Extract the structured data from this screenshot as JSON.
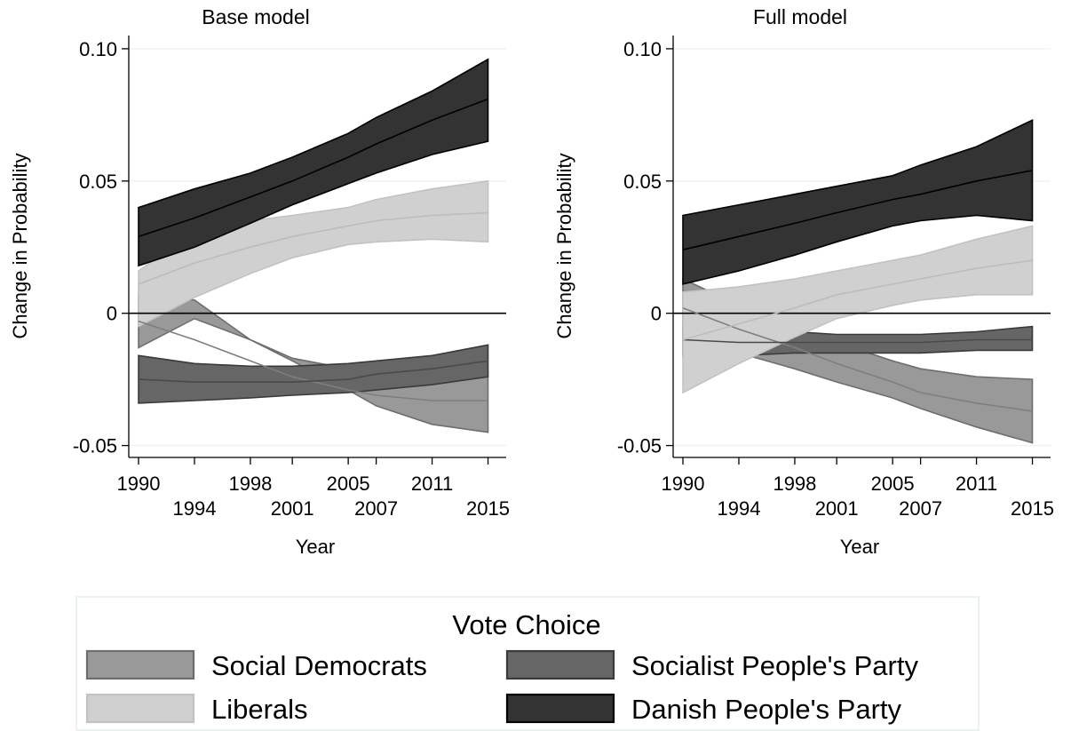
{
  "chart_data": [
    {
      "type": "area",
      "title": "Base model",
      "xlabel": "Year",
      "ylabel": "Change in Probability",
      "xlim": [
        1989.3,
        2016.3
      ],
      "ylim": [
        -0.0545,
        0.105
      ],
      "x_ticks": [
        1990,
        1994,
        1998,
        2001,
        2005,
        2007,
        2011,
        2015
      ],
      "y_ticks": [
        -0.05,
        0,
        0.05,
        0.1
      ],
      "y_tick_labels": [
        "-0.05",
        "0",
        "0.05",
        "0.10"
      ],
      "reference_line": 0,
      "grid": "horizontal",
      "series": [
        {
          "name": "Social Democrats",
          "x": [
            1990,
            1994,
            1998,
            2001,
            2005,
            2007,
            2011,
            2015
          ],
          "y": [
            -0.003,
            -0.01,
            -0.018,
            -0.024,
            -0.029,
            -0.031,
            -0.033,
            -0.033
          ],
          "lower": [
            -0.013,
            -0.002,
            -0.01,
            -0.018,
            -0.029,
            -0.035,
            -0.042,
            -0.045
          ],
          "upper": [
            0.007,
            0.005,
            -0.01,
            -0.017,
            -0.021,
            -0.027,
            -0.024,
            -0.022
          ]
        },
        {
          "name": "Socialist People's Party",
          "x": [
            1990,
            1994,
            1998,
            2001,
            2005,
            2007,
            2011,
            2015
          ],
          "y": [
            -0.025,
            -0.026,
            -0.026,
            -0.026,
            -0.025,
            -0.023,
            -0.021,
            -0.018
          ],
          "lower": [
            -0.034,
            -0.033,
            -0.032,
            -0.031,
            -0.03,
            -0.029,
            -0.027,
            -0.024
          ],
          "upper": [
            -0.016,
            -0.019,
            -0.02,
            -0.02,
            -0.019,
            -0.018,
            -0.016,
            -0.012
          ]
        },
        {
          "name": "Liberals",
          "x": [
            1990,
            1994,
            1998,
            2001,
            2005,
            2007,
            2011,
            2015
          ],
          "y": [
            0.011,
            0.019,
            0.025,
            0.029,
            0.033,
            0.035,
            0.037,
            0.038
          ],
          "lower": [
            -0.005,
            0.006,
            0.015,
            0.021,
            0.026,
            0.027,
            0.028,
            0.027
          ],
          "upper": [
            0.016,
            0.031,
            0.035,
            0.037,
            0.04,
            0.043,
            0.047,
            0.05
          ]
        },
        {
          "name": "Danish People's Party",
          "x": [
            1990,
            1994,
            1998,
            2001,
            2005,
            2007,
            2011,
            2015
          ],
          "y": [
            0.029,
            0.036,
            0.044,
            0.05,
            0.059,
            0.064,
            0.073,
            0.081
          ],
          "lower": [
            0.018,
            0.025,
            0.034,
            0.041,
            0.049,
            0.053,
            0.06,
            0.065
          ],
          "upper": [
            0.04,
            0.047,
            0.053,
            0.059,
            0.068,
            0.074,
            0.084,
            0.096
          ]
        }
      ]
    },
    {
      "type": "area",
      "title": "Full model",
      "xlabel": "Year",
      "ylabel": "Change in Probability",
      "xlim": [
        1989.3,
        2016.3
      ],
      "ylim": [
        -0.0545,
        0.105
      ],
      "x_ticks": [
        1990,
        1994,
        1998,
        2001,
        2005,
        2007,
        2011,
        2015
      ],
      "y_ticks": [
        -0.05,
        0,
        0.05,
        0.1
      ],
      "y_tick_labels": [
        "-0.05",
        "0",
        "0.05",
        "0.10"
      ],
      "reference_line": 0,
      "grid": "horizontal",
      "series": [
        {
          "name": "Social Democrats",
          "x": [
            1990,
            1994,
            1998,
            2001,
            2005,
            2007,
            2011,
            2015
          ],
          "y": [
            0.002,
            -0.006,
            -0.013,
            -0.019,
            -0.026,
            -0.03,
            -0.034,
            -0.037
          ],
          "lower": [
            -0.008,
            -0.015,
            -0.021,
            -0.026,
            -0.032,
            -0.036,
            -0.043,
            -0.049
          ],
          "upper": [
            0.013,
            0.003,
            -0.006,
            -0.011,
            -0.018,
            -0.021,
            -0.024,
            -0.025
          ]
        },
        {
          "name": "Socialist People's Party",
          "x": [
            1990,
            1994,
            1998,
            2001,
            2005,
            2007,
            2011,
            2015
          ],
          "y": [
            -0.01,
            -0.011,
            -0.011,
            -0.011,
            -0.011,
            -0.011,
            -0.01,
            -0.01
          ],
          "lower": [
            -0.016,
            -0.016,
            -0.015,
            -0.015,
            -0.015,
            -0.015,
            -0.014,
            -0.014
          ],
          "upper": [
            -0.005,
            -0.006,
            -0.007,
            -0.008,
            -0.008,
            -0.008,
            -0.007,
            -0.005
          ]
        },
        {
          "name": "Liberals",
          "x": [
            1990,
            1994,
            1998,
            2001,
            2005,
            2007,
            2011,
            2015
          ],
          "y": [
            -0.01,
            -0.004,
            0.002,
            0.007,
            0.011,
            0.013,
            0.017,
            0.02
          ],
          "lower": [
            -0.03,
            -0.019,
            -0.009,
            -0.002,
            0.003,
            0.005,
            0.007,
            0.007
          ],
          "upper": [
            0.008,
            0.01,
            0.013,
            0.016,
            0.02,
            0.022,
            0.028,
            0.033
          ]
        },
        {
          "name": "Danish People's Party",
          "x": [
            1990,
            1994,
            1998,
            2001,
            2005,
            2007,
            2011,
            2015
          ],
          "y": [
            0.024,
            0.029,
            0.034,
            0.038,
            0.043,
            0.045,
            0.05,
            0.054
          ],
          "lower": [
            0.011,
            0.016,
            0.022,
            0.027,
            0.033,
            0.035,
            0.037,
            0.035
          ],
          "upper": [
            0.037,
            0.041,
            0.045,
            0.048,
            0.052,
            0.056,
            0.063,
            0.073
          ]
        }
      ]
    }
  ],
  "colors": {
    "Social Democrats": {
      "fill": "#999999",
      "line": "#7f7f7f",
      "edge": "#6e6e6e"
    },
    "Socialist People's Party": {
      "fill": "#666666",
      "line": "#4a4a4a",
      "edge": "#3a3a3a"
    },
    "Liberals": {
      "fill": "#d0d0d0",
      "line": "#bcbcbc",
      "edge": "#c2c2c2"
    },
    "Danish People's Party": {
      "fill": "#333333",
      "line": "#000000",
      "edge": "#000000"
    }
  },
  "legend": {
    "title": "Vote Choice",
    "items": [
      "Social Democrats",
      "Socialist People's Party",
      "Liberals",
      "Danish People's Party"
    ]
  }
}
